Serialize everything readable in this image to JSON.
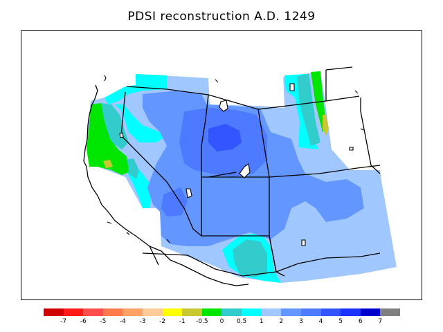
{
  "title": "PDSI reconstruction A.D. 1249",
  "legend": {
    "colors": [
      "#d10000",
      "#ff1a1a",
      "#ff4d4d",
      "#ff7a4d",
      "#ffa066",
      "#ffcc99",
      "#ffff00",
      "#c8c832",
      "#00e600",
      "#33cccc",
      "#00ffff",
      "#a0c8ff",
      "#6496ff",
      "#4d7aff",
      "#3355ff",
      "#1a33ff",
      "#0000cc",
      "#808080"
    ],
    "labels": [
      "-7",
      "-6",
      "-5",
      "-4",
      "-3",
      "-2",
      "-1",
      "-0.5",
      "0",
      "0.5",
      "1",
      "2",
      "3",
      "4",
      "5",
      "6",
      "7"
    ]
  },
  "map": {
    "palette": {
      "dry_green": "#00e600",
      "olive": "#c8c832",
      "teal": "#33cccc",
      "cyan": "#00ffff",
      "light_blue": "#a0c8ff",
      "medium_blue": "#6496ff",
      "blue": "#4d7aff",
      "deep_blue": "#3355ff",
      "outline": "#000000"
    }
  }
}
